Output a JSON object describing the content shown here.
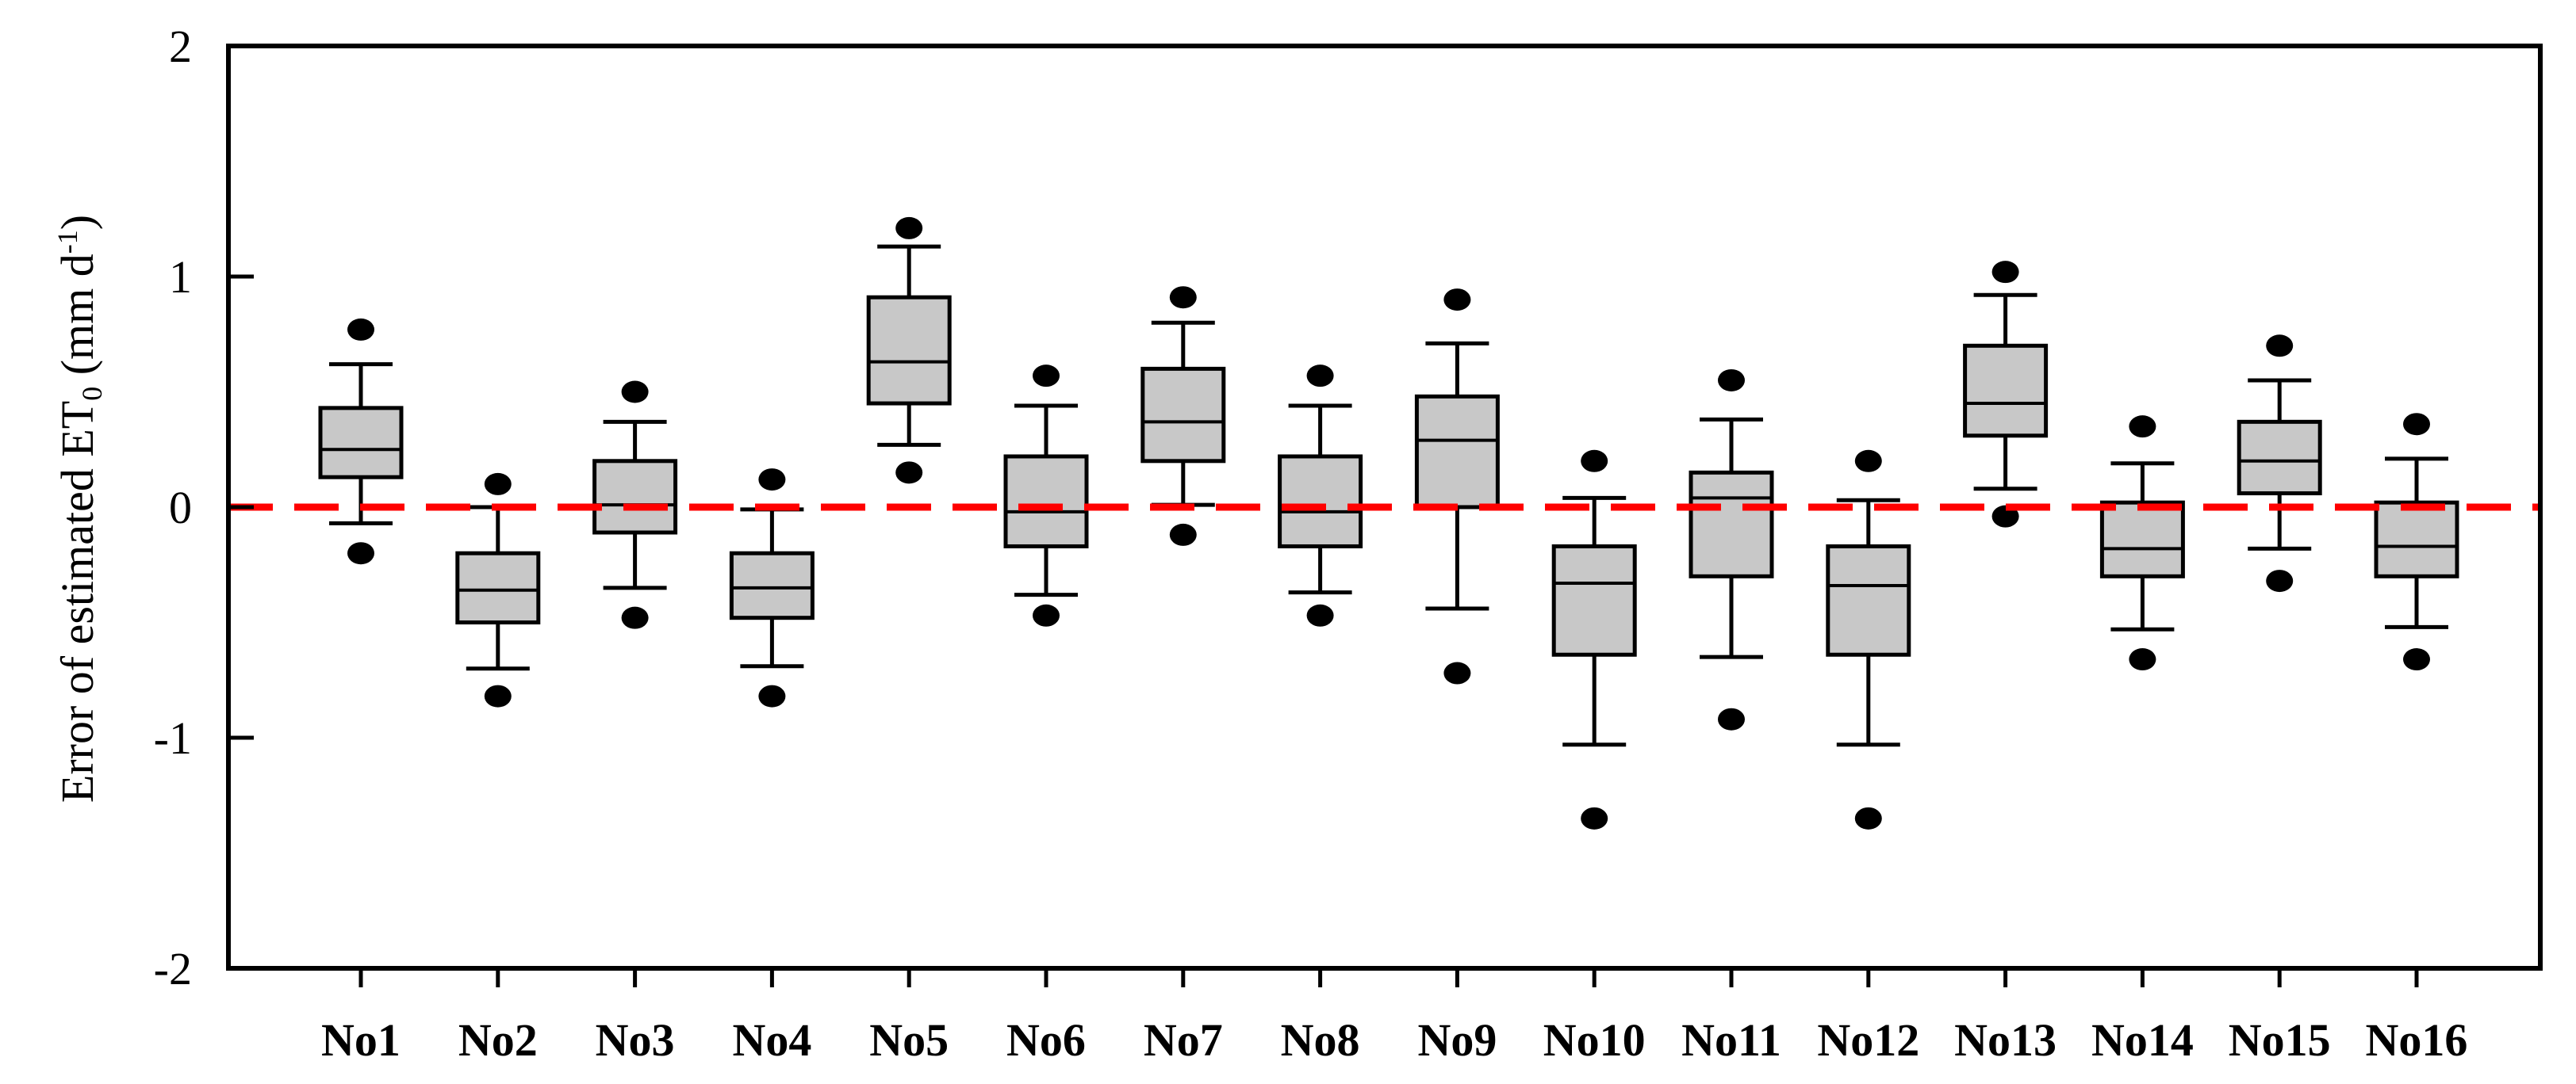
{
  "figure": {
    "background": "#ffffff",
    "frame_color": "#000000",
    "y_axis": {
      "title_main": "Error of estimated ET",
      "title_sub": "0",
      "title_mid": " (mm d",
      "title_sup": "-1",
      "title_end": ")",
      "tick_labels": [
        "2",
        "1",
        "0",
        "-1",
        "-2"
      ],
      "tick_values": [
        2,
        1,
        0,
        -1,
        -2
      ]
    },
    "zero_line": {
      "value": 0,
      "color": "#ff0000",
      "style": "dashed"
    },
    "box_style": {
      "fill": "#c8c8c8",
      "stroke": "#000000",
      "outlier_color": "#000000"
    }
  },
  "chart_data": {
    "type": "box",
    "title": "",
    "xlabel": "",
    "ylabel": "Error of estimated ET0 (mm d-1)",
    "ylim": [
      -2,
      2
    ],
    "grid": false,
    "zero_reference_line": 0,
    "categories": [
      "No1",
      "No2",
      "No3",
      "No4",
      "No5",
      "No6",
      "No7",
      "No8",
      "No9",
      "No10",
      "No11",
      "No12",
      "No13",
      "No14",
      "No15",
      "No16"
    ],
    "boxes": [
      {
        "label": "No1",
        "outlier_high": 0.77,
        "whisker_high": 0.62,
        "q3": 0.43,
        "median": 0.25,
        "q1": 0.13,
        "whisker_low": -0.07,
        "outlier_low": -0.2
      },
      {
        "label": "No2",
        "outlier_high": 0.1,
        "whisker_high": 0.0,
        "q3": -0.2,
        "median": -0.36,
        "q1": -0.5,
        "whisker_low": -0.7,
        "outlier_low": -0.82
      },
      {
        "label": "No3",
        "outlier_high": 0.5,
        "whisker_high": 0.37,
        "q3": 0.2,
        "median": 0.01,
        "q1": -0.11,
        "whisker_low": -0.35,
        "outlier_low": -0.48
      },
      {
        "label": "No4",
        "outlier_high": 0.12,
        "whisker_high": -0.01,
        "q3": -0.2,
        "median": -0.35,
        "q1": -0.48,
        "whisker_low": -0.69,
        "outlier_low": -0.82
      },
      {
        "label": "No5",
        "outlier_high": 1.21,
        "whisker_high": 1.13,
        "q3": 0.91,
        "median": 0.63,
        "q1": 0.45,
        "whisker_low": 0.27,
        "outlier_low": 0.15
      },
      {
        "label": "No6",
        "outlier_high": 0.57,
        "whisker_high": 0.44,
        "q3": 0.22,
        "median": -0.02,
        "q1": -0.17,
        "whisker_low": -0.38,
        "outlier_low": -0.47
      },
      {
        "label": "No7",
        "outlier_high": 0.91,
        "whisker_high": 0.8,
        "q3": 0.6,
        "median": 0.37,
        "q1": 0.2,
        "whisker_low": 0.01,
        "outlier_low": -0.12
      },
      {
        "label": "No8",
        "outlier_high": 0.57,
        "whisker_high": 0.44,
        "q3": 0.22,
        "median": -0.02,
        "q1": -0.17,
        "whisker_low": -0.37,
        "outlier_low": -0.47
      },
      {
        "label": "No9",
        "outlier_high": 0.9,
        "whisker_high": 0.71,
        "q3": 0.48,
        "median": 0.29,
        "q1": 0.0,
        "whisker_low": -0.44,
        "outlier_low": -0.72
      },
      {
        "label": "No10",
        "outlier_high": 0.2,
        "whisker_high": 0.04,
        "q3": -0.17,
        "median": -0.33,
        "q1": -0.64,
        "whisker_low": -1.03,
        "outlier_low": -1.35
      },
      {
        "label": "No11",
        "outlier_high": 0.55,
        "whisker_high": 0.38,
        "q3": 0.15,
        "median": 0.04,
        "q1": -0.3,
        "whisker_low": -0.65,
        "outlier_low": -0.92
      },
      {
        "label": "No12",
        "outlier_high": 0.2,
        "whisker_high": 0.03,
        "q3": -0.17,
        "median": -0.34,
        "q1": -0.64,
        "whisker_low": -1.03,
        "outlier_low": -1.35
      },
      {
        "label": "No13",
        "outlier_high": 1.02,
        "whisker_high": 0.92,
        "q3": 0.7,
        "median": 0.45,
        "q1": 0.31,
        "whisker_low": 0.08,
        "outlier_low": -0.04
      },
      {
        "label": "No14",
        "outlier_high": 0.35,
        "whisker_high": 0.19,
        "q3": 0.02,
        "median": -0.18,
        "q1": -0.3,
        "whisker_low": -0.53,
        "outlier_low": -0.66
      },
      {
        "label": "No15",
        "outlier_high": 0.7,
        "whisker_high": 0.55,
        "q3": 0.37,
        "median": 0.2,
        "q1": 0.06,
        "whisker_low": -0.18,
        "outlier_low": -0.32
      },
      {
        "label": "No16",
        "outlier_high": 0.36,
        "whisker_high": 0.21,
        "q3": 0.02,
        "median": -0.17,
        "q1": -0.3,
        "whisker_low": -0.52,
        "outlier_low": -0.66
      }
    ]
  }
}
